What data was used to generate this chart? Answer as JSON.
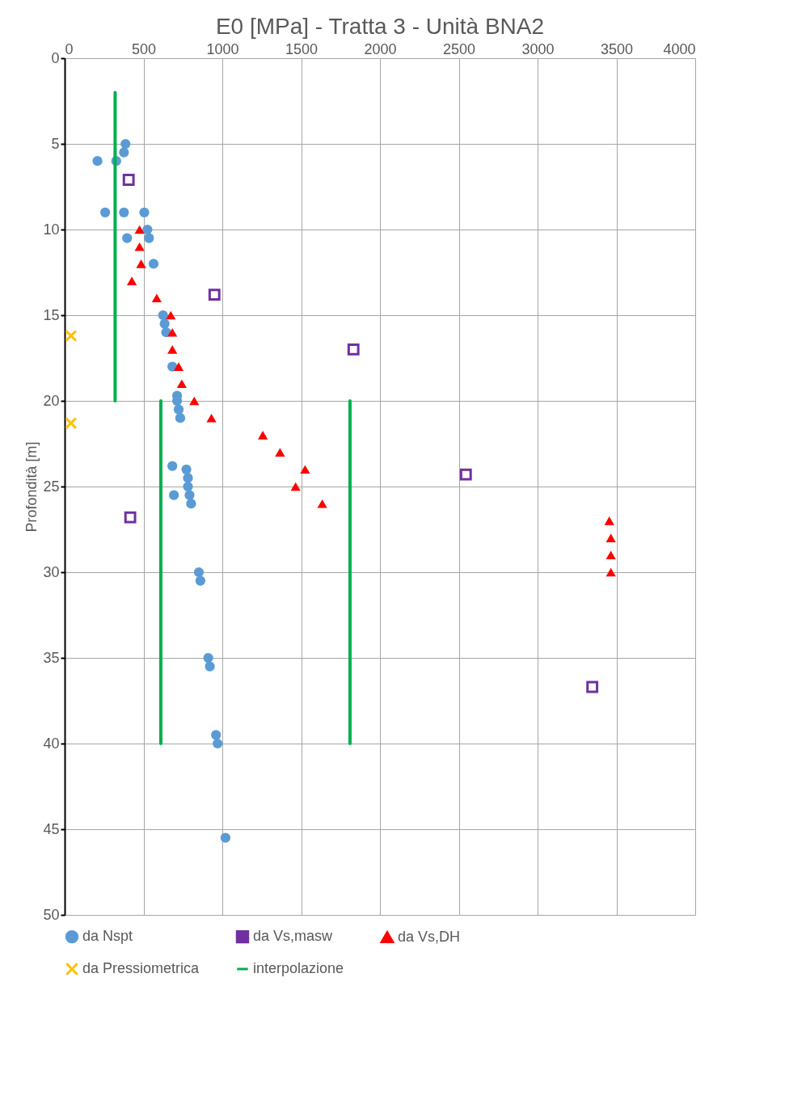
{
  "chart_data": {
    "type": "scatter",
    "title": "E0 [MPa] - Tratta 3 - Unità BNA2",
    "ylabel": "Profondità [m]",
    "xlim": [
      0,
      4000
    ],
    "xticks": [
      0,
      500,
      1000,
      1500,
      2000,
      2500,
      3000,
      3500,
      4000
    ],
    "ylim": [
      50,
      0
    ],
    "yticks": [
      0,
      5,
      10,
      15,
      20,
      25,
      30,
      35,
      40,
      45,
      50
    ],
    "grid": true,
    "legend": "bottom",
    "series": [
      {
        "name": "da Nspt",
        "color": "#5b9bd5",
        "marker": "circle",
        "x": [
          386,
          376,
          208,
          327,
          257,
          376,
          505,
          525,
          396,
          535,
          564,
          624,
          634,
          644,
          683,
          713,
          713,
          723,
          733,
          683,
          772,
          782,
          782,
          792,
          693,
          802,
          851,
          861,
          911,
          921,
          960,
          970,
          1020
        ],
        "values": [
          5,
          5.5,
          6,
          6,
          9,
          9,
          9,
          10,
          10.5,
          10.5,
          12,
          15,
          15.5,
          16,
          18,
          19.7,
          20,
          20.5,
          21,
          23.8,
          24,
          24.5,
          25,
          25.5,
          25.5,
          26,
          30,
          30.5,
          35,
          35.5,
          39.5,
          40,
          45.5
        ]
      },
      {
        "name": "da Vs,masw",
        "color": "#7030a0",
        "marker": "square",
        "x": [
          406,
          950,
          1832,
          2545,
          416,
          3347
        ],
        "values": [
          7.1,
          13.8,
          17,
          24.3,
          26.8,
          36.7
        ]
      },
      {
        "name": "da Vs,DH",
        "color": "#ff0000",
        "marker": "triangle",
        "x": [
          475,
          475,
          485,
          426,
          584,
          673,
          683,
          683,
          723,
          743,
          822,
          931,
          1257,
          1366,
          1525,
          1465,
          1634,
          3455,
          3465,
          3465,
          3465
        ],
        "values": [
          10,
          11,
          12,
          13,
          14,
          15,
          16,
          17,
          18,
          19,
          20,
          21,
          22,
          23,
          24,
          25,
          26,
          27,
          28,
          29,
          30
        ]
      },
      {
        "name": "da Pressiometrica",
        "color": "#ffc000",
        "marker": "cross",
        "x": [
          40,
          40
        ],
        "values": [
          16.2,
          21.3
        ]
      },
      {
        "name": "interpolazione",
        "color": "#00b050",
        "type": "line",
        "marker": "none",
        "x": [
          320,
          320,
          null,
          610,
          610,
          null,
          1810,
          1810
        ],
        "values": [
          2,
          20,
          null,
          20,
          40,
          null,
          20,
          40
        ]
      }
    ]
  }
}
